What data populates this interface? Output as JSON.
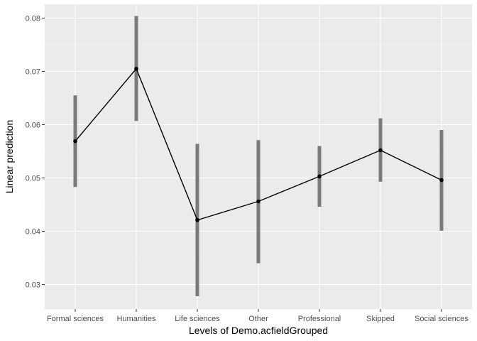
{
  "chart_data": {
    "type": "line",
    "title": "",
    "xlabel": "Levels of Demo.acfieldGrouped",
    "ylabel": "Linear prediction",
    "categories": [
      "Formal sciences",
      "Humanities",
      "Life sciences",
      "Other",
      "Professional",
      "Skipped",
      "Social sciences"
    ],
    "values": [
      0.0569,
      0.0705,
      0.0421,
      0.0456,
      0.0503,
      0.0552,
      0.0496
    ],
    "ci_low": [
      0.0483,
      0.0607,
      0.0278,
      0.034,
      0.0446,
      0.0493,
      0.0401
    ],
    "ci_high": [
      0.0655,
      0.0804,
      0.0564,
      0.0571,
      0.056,
      0.0612,
      0.059
    ],
    "yticks": [
      0.03,
      0.04,
      0.05,
      0.06,
      0.07,
      0.08
    ],
    "ytick_labels": [
      "0.03",
      "0.04",
      "0.05",
      "0.06",
      "0.07",
      "0.08"
    ],
    "ylim": [
      0.0254,
      0.0826
    ],
    "grid": true,
    "colors": {
      "panel": "#ebebeb",
      "grid_major": "#ffffff",
      "errorbar": "#7a7a7a",
      "line": "#000000",
      "point": "#000000"
    }
  }
}
